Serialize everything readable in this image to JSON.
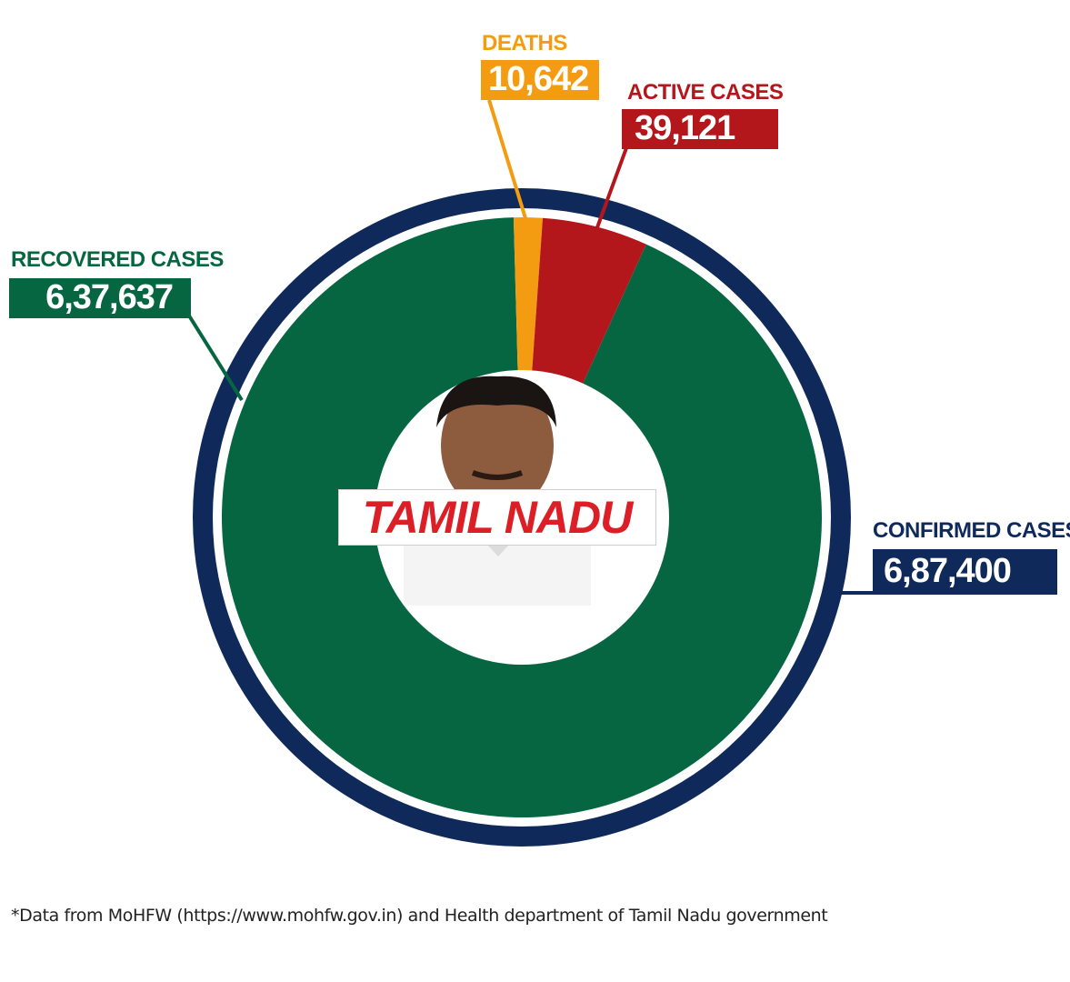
{
  "chart_data": {
    "type": "pie",
    "title": "TAMIL NADU",
    "outer_ring": {
      "label": "CONFIRMED CASES",
      "value": 687400,
      "display": "6,87,400",
      "color": "#0f2a5a"
    },
    "slices": [
      {
        "label": "RECOVERED CASES",
        "value": 637637,
        "display": "6,37,637",
        "color": "#066641"
      },
      {
        "label": "DEATHS",
        "value": 10642,
        "display": "10,642",
        "color": "#f39c12"
      },
      {
        "label": "ACTIVE CASES",
        "value": 39121,
        "display": "39,121",
        "color": "#b3161b"
      }
    ]
  },
  "footnote": "*Data from MoHFW (https://www.mohfw.gov.in) and Health department of Tamil Nadu government"
}
